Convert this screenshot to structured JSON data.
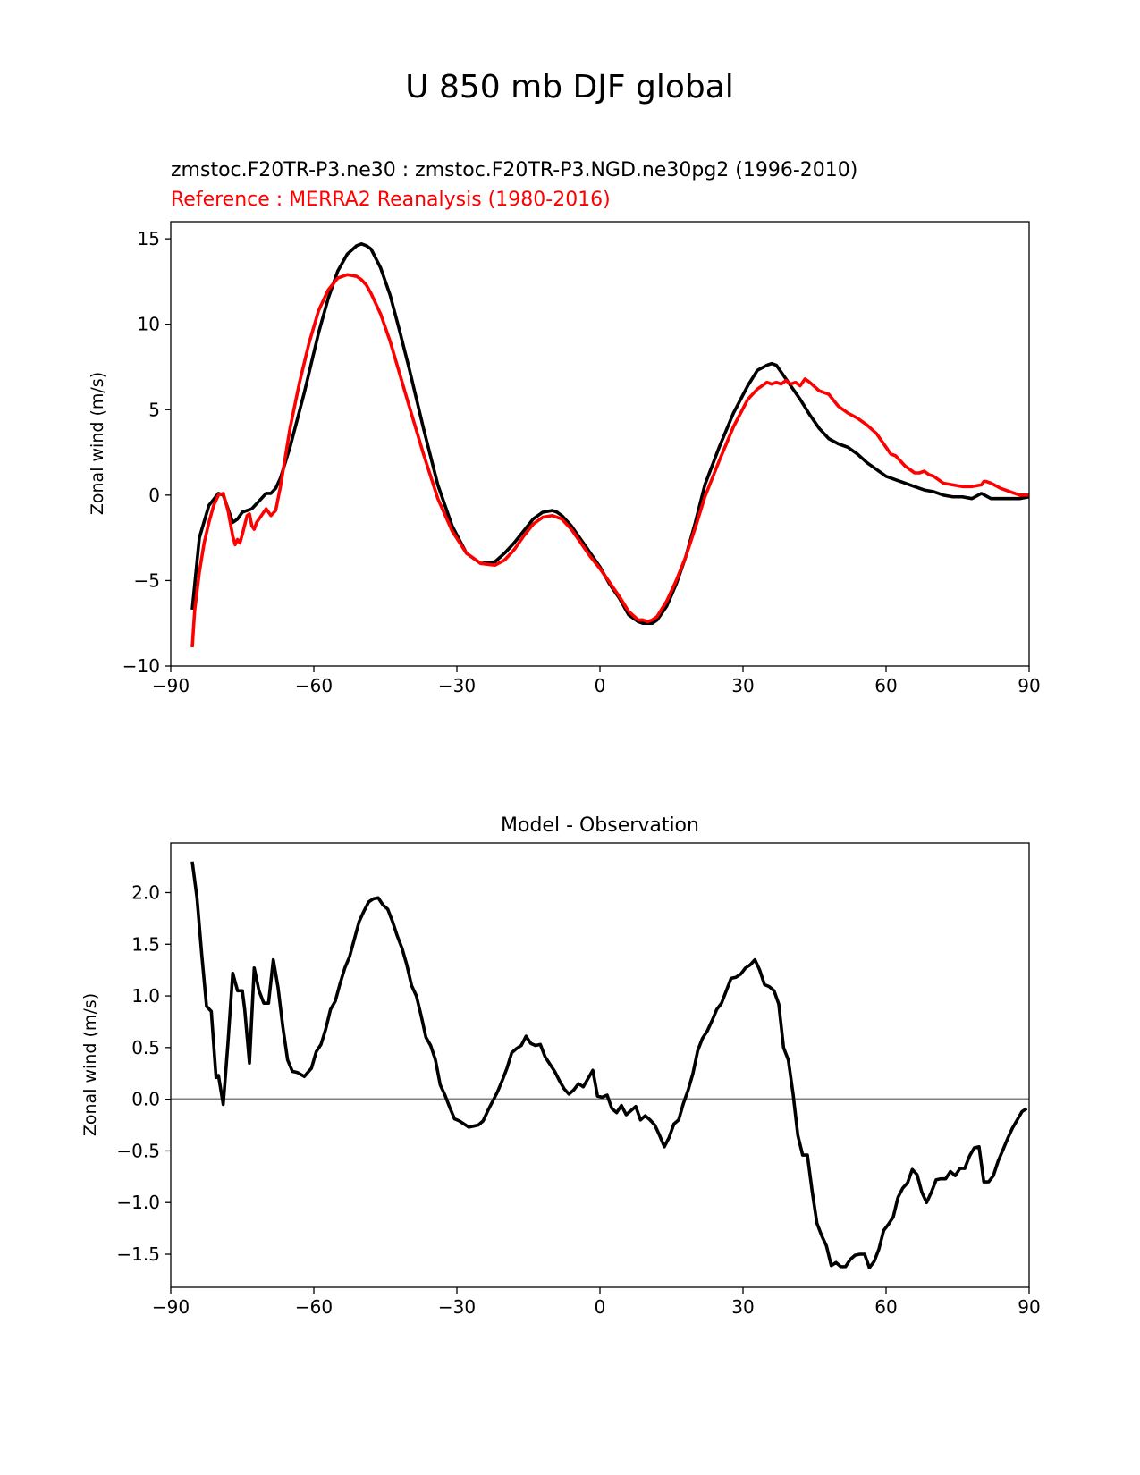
{
  "figure": {
    "title": "U 850 mb DJF global"
  },
  "chart_data": [
    {
      "type": "line",
      "title": "zmstoc.F20TR-P3.ne30 : zmstoc.F20TR-P3.NGD.ne30pg2 (1996-2010)",
      "subtitle": "Reference : MERRA2 Reanalysis (1980-2016)",
      "xlabel": "",
      "ylabel": "Zonal wind (m/s)",
      "xlim": [
        -90,
        90
      ],
      "ylim": [
        -10,
        16
      ],
      "xticks": [
        -90,
        -60,
        -30,
        0,
        30,
        60,
        90
      ],
      "xtick_labels": [
        "−90",
        "−60",
        "−30",
        "0",
        "30",
        "60",
        "90"
      ],
      "yticks": [
        -10,
        -5,
        0,
        5,
        10,
        15
      ],
      "ytick_labels": [
        "−10",
        "−5",
        "0",
        "5",
        "10",
        "15"
      ],
      "series": [
        {
          "name": "zmstoc.F20TR-P3.ne30",
          "color": "#000000",
          "x": [
            -85.5,
            -84,
            -82,
            -80,
            -79,
            -78,
            -77,
            -76,
            -75,
            -73,
            -71,
            -70,
            -69,
            -68,
            -67,
            -65,
            -62,
            -59,
            -57,
            -55,
            -53,
            -51,
            -50,
            -49,
            -48,
            -46,
            -44,
            -42,
            -40,
            -37,
            -34,
            -31,
            -28,
            -25,
            -22,
            -20,
            -18,
            -16,
            -14,
            -12,
            -10,
            -9,
            -8,
            -6,
            -4,
            -2,
            0,
            2,
            4,
            6,
            8,
            9,
            10,
            11,
            12,
            14,
            16,
            18,
            20,
            22,
            25,
            28,
            31,
            33,
            35,
            36,
            37,
            38,
            39,
            40,
            42,
            44,
            46,
            48,
            50,
            52,
            54,
            56,
            58,
            60,
            62,
            64,
            66,
            68,
            70,
            72,
            74,
            76,
            78,
            80,
            82,
            84,
            86,
            88,
            90
          ],
          "values": [
            -6.7,
            -2.5,
            -0.6,
            0.1,
            0.0,
            -0.8,
            -1.6,
            -1.4,
            -1.0,
            -0.8,
            -0.2,
            0.1,
            0.1,
            0.4,
            1.0,
            2.8,
            6.0,
            9.5,
            11.5,
            13.1,
            14.1,
            14.6,
            14.7,
            14.6,
            14.4,
            13.3,
            11.7,
            9.6,
            7.4,
            3.9,
            0.6,
            -1.8,
            -3.4,
            -4.0,
            -3.9,
            -3.4,
            -2.8,
            -2.1,
            -1.4,
            -1.0,
            -0.9,
            -1.0,
            -1.2,
            -1.8,
            -2.6,
            -3.4,
            -4.2,
            -5.2,
            -6.0,
            -7.0,
            -7.4,
            -7.5,
            -7.5,
            -7.5,
            -7.3,
            -6.5,
            -5.2,
            -3.6,
            -1.6,
            0.6,
            2.8,
            4.8,
            6.4,
            7.3,
            7.6,
            7.7,
            7.6,
            7.2,
            6.8,
            6.4,
            5.6,
            4.7,
            3.9,
            3.3,
            3.0,
            2.8,
            2.4,
            1.9,
            1.5,
            1.1,
            0.9,
            0.7,
            0.5,
            0.3,
            0.2,
            0.0,
            -0.1,
            -0.1,
            -0.2,
            0.1,
            -0.2,
            -0.2,
            -0.2,
            -0.2,
            -0.1
          ]
        },
        {
          "name": "MERRA2 Reanalysis",
          "color": "#ff0000",
          "x": [
            -85.5,
            -85,
            -84,
            -83,
            -82,
            -81,
            -80,
            -79,
            -78,
            -77,
            -76.5,
            -76,
            -75.5,
            -75,
            -74,
            -73.5,
            -73,
            -72.5,
            -72,
            -71,
            -70,
            -69,
            -68,
            -67,
            -66,
            -65,
            -63,
            -61,
            -59,
            -57,
            -55,
            -53,
            -51,
            -50,
            -49,
            -48,
            -46,
            -44,
            -42,
            -40,
            -37,
            -34,
            -31,
            -28,
            -25,
            -22,
            -20,
            -18,
            -16,
            -14,
            -12,
            -10,
            -9,
            -8,
            -6,
            -4,
            -2,
            0,
            2,
            4,
            6,
            8,
            9,
            10,
            11,
            12,
            14,
            16,
            18,
            20,
            22,
            25,
            28,
            31,
            33,
            35,
            36,
            37,
            38,
            39,
            40,
            41,
            42,
            43,
            44,
            46,
            48,
            50,
            52,
            54,
            56,
            58,
            60,
            61,
            62,
            64,
            66,
            67,
            68,
            69,
            70,
            72,
            74,
            76,
            78,
            80,
            80.5,
            81,
            82,
            84,
            86,
            88,
            90
          ],
          "values": [
            -8.9,
            -6.8,
            -4.5,
            -2.8,
            -1.6,
            -0.6,
            0.0,
            0.1,
            -0.9,
            -2.4,
            -2.9,
            -2.6,
            -2.8,
            -2.3,
            -1.2,
            -1.1,
            -1.8,
            -2.0,
            -1.6,
            -1.2,
            -0.8,
            -1.2,
            -0.9,
            0.5,
            2.2,
            3.9,
            6.6,
            8.9,
            10.8,
            12.0,
            12.7,
            12.9,
            12.8,
            12.6,
            12.3,
            11.8,
            10.6,
            9.0,
            7.1,
            5.2,
            2.4,
            -0.2,
            -2.1,
            -3.4,
            -4.0,
            -4.1,
            -3.8,
            -3.2,
            -2.4,
            -1.7,
            -1.3,
            -1.2,
            -1.3,
            -1.4,
            -2.0,
            -2.8,
            -3.6,
            -4.3,
            -5.1,
            -5.9,
            -6.8,
            -7.3,
            -7.3,
            -7.4,
            -7.3,
            -7.1,
            -6.2,
            -5.0,
            -3.6,
            -1.9,
            -0.1,
            2.0,
            4.0,
            5.6,
            6.2,
            6.6,
            6.5,
            6.6,
            6.5,
            6.7,
            6.5,
            6.6,
            6.4,
            6.8,
            6.6,
            6.1,
            5.9,
            5.2,
            4.8,
            4.5,
            4.1,
            3.6,
            2.8,
            2.4,
            2.3,
            1.7,
            1.3,
            1.3,
            1.4,
            1.2,
            1.1,
            0.7,
            0.6,
            0.5,
            0.5,
            0.6,
            0.8,
            0.8,
            0.7,
            0.4,
            0.2,
            0.0,
            0.0
          ]
        }
      ]
    },
    {
      "type": "line",
      "title": "Model - Observation",
      "xlabel": "",
      "ylabel": "Zonal wind (m/s)",
      "xlim": [
        -90,
        90
      ],
      "ylim": [
        -1.82,
        2.48
      ],
      "xticks": [
        -90,
        -60,
        -30,
        0,
        30,
        60,
        90
      ],
      "xtick_labels": [
        "−90",
        "−60",
        "−30",
        "0",
        "30",
        "60",
        "90"
      ],
      "yticks": [
        -1.5,
        -1.0,
        -0.5,
        0.0,
        0.5,
        1.0,
        1.5,
        2.0
      ],
      "ytick_labels": [
        "−1.5",
        "−1.0",
        "−0.5",
        "0.0",
        "0.5",
        "1.0",
        "1.5",
        "2.0"
      ],
      "zero_line": {
        "y": 0,
        "color": "#808080"
      },
      "series": [
        {
          "name": "Model - Observation",
          "color": "#000000",
          "x": [
            -85.5,
            -84.5,
            -83.5,
            -82.5,
            -81.5,
            -80.5,
            -80,
            -79,
            -78,
            -77,
            -76,
            -75,
            -74.5,
            -73.5,
            -72.5,
            -71.5,
            -70.5,
            -69.5,
            -68.5,
            -67.5,
            -66.5,
            -65.5,
            -64.5,
            -63.5,
            -62,
            -60.5,
            -59.5,
            -58.5,
            -57.5,
            -56.5,
            -55.5,
            -54.5,
            -53.5,
            -52.5,
            -51.5,
            -50.5,
            -49.5,
            -48.5,
            -47.5,
            -46.5,
            -45.5,
            -44.5,
            -43.5,
            -42.5,
            -41.5,
            -40.5,
            -39.5,
            -38.5,
            -37.5,
            -36.5,
            -35.5,
            -34.5,
            -33.5,
            -32.5,
            -31.5,
            -30.5,
            -29.5,
            -28.5,
            -27.5,
            -26.5,
            -25.5,
            -24.5,
            -23.5,
            -22.5,
            -21.5,
            -20.5,
            -19.5,
            -18.5,
            -17.5,
            -16.5,
            -15.5,
            -14.5,
            -13.5,
            -12.5,
            -11.5,
            -10.5,
            -9.5,
            -8.5,
            -7.5,
            -6.5,
            -5.5,
            -4.5,
            -3.5,
            -2.5,
            -1.5,
            -0.5,
            0.5,
            1.5,
            2.5,
            3.5,
            4.5,
            5.5,
            6.5,
            7.5,
            8.5,
            9.5,
            10.5,
            11.5,
            12.5,
            13.5,
            14.5,
            15.5,
            16.5,
            17.5,
            18.5,
            19.5,
            20.5,
            21.5,
            22.5,
            23.5,
            24.5,
            25.5,
            26.5,
            27.5,
            28.5,
            29.5,
            30.5,
            31.5,
            32.5,
            33.5,
            34.5,
            35.5,
            36.5,
            37.5,
            38.5,
            39.5,
            40.5,
            41.5,
            42.5,
            43.5,
            44.5,
            45.5,
            46.5,
            47.5,
            48.5,
            49.5,
            50.5,
            51.5,
            52.5,
            53.5,
            54.5,
            55.5,
            56.5,
            57.5,
            58.5,
            59.5,
            60.5,
            61.5,
            62.5,
            63.5,
            64.5,
            65.5,
            66.5,
            67.5,
            68.5,
            69.5,
            70.5,
            71.5,
            72.5,
            73.5,
            74.5,
            75.5,
            76.5,
            77.5,
            78.5,
            79.5,
            80.5,
            81.5,
            82.5,
            83.5,
            84.5,
            85.5,
            86.5,
            87.5,
            88.5,
            89.5
          ],
          "values": [
            2.3,
            1.95,
            1.4,
            0.9,
            0.85,
            0.21,
            0.23,
            -0.05,
            0.55,
            1.22,
            1.05,
            1.05,
            0.87,
            0.35,
            1.27,
            1.05,
            0.93,
            0.93,
            1.35,
            1.08,
            0.7,
            0.38,
            0.27,
            0.26,
            0.22,
            0.3,
            0.46,
            0.53,
            0.68,
            0.87,
            0.95,
            1.12,
            1.27,
            1.38,
            1.55,
            1.72,
            1.82,
            1.91,
            1.94,
            1.95,
            1.88,
            1.84,
            1.72,
            1.58,
            1.46,
            1.3,
            1.1,
            1.0,
            0.81,
            0.6,
            0.52,
            0.38,
            0.14,
            0.04,
            -0.08,
            -0.19,
            -0.21,
            -0.24,
            -0.27,
            -0.26,
            -0.25,
            -0.21,
            -0.11,
            -0.02,
            0.07,
            0.18,
            0.3,
            0.45,
            0.49,
            0.52,
            0.61,
            0.54,
            0.52,
            0.53,
            0.41,
            0.34,
            0.27,
            0.18,
            0.1,
            0.05,
            0.09,
            0.15,
            0.12,
            0.2,
            0.28,
            0.03,
            0.02,
            0.04,
            -0.09,
            -0.13,
            -0.06,
            -0.15,
            -0.11,
            -0.07,
            -0.2,
            -0.16,
            -0.2,
            -0.25,
            -0.35,
            -0.46,
            -0.37,
            -0.24,
            -0.2,
            -0.04,
            0.09,
            0.25,
            0.47,
            0.59,
            0.66,
            0.76,
            0.87,
            0.93,
            1.05,
            1.17,
            1.18,
            1.21,
            1.27,
            1.3,
            1.35,
            1.25,
            1.11,
            1.09,
            1.05,
            0.92,
            0.5,
            0.38,
            0.05,
            -0.35,
            -0.54,
            -0.54,
            -0.89,
            -1.2,
            -1.32,
            -1.42,
            -1.61,
            -1.58,
            -1.62,
            -1.62,
            -1.55,
            -1.51,
            -1.5,
            -1.5,
            -1.63,
            -1.57,
            -1.45,
            -1.27,
            -1.21,
            -1.14,
            -0.95,
            -0.86,
            -0.81,
            -0.68,
            -0.73,
            -0.9,
            -1.0,
            -0.9,
            -0.78,
            -0.77,
            -0.77,
            -0.7,
            -0.74,
            -0.67,
            -0.67,
            -0.55,
            -0.47,
            -0.46,
            -0.8,
            -0.8,
            -0.74,
            -0.6,
            -0.49,
            -0.38,
            -0.28,
            -0.2,
            -0.12,
            -0.09
          ]
        }
      ]
    }
  ]
}
